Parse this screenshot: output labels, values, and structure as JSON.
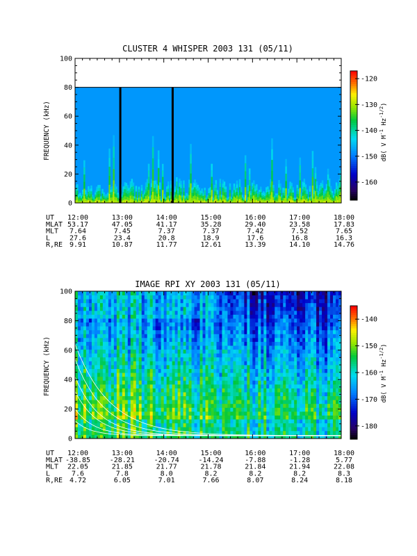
{
  "chart_data": [
    {
      "type": "heatmap",
      "title": "CLUSTER 4 WHISPER 2003 131 (05/11)",
      "ylabel": "FREQUENCY (kHz)",
      "ylim": [
        0,
        100
      ],
      "yticks": [
        "0",
        "20",
        "40",
        "60",
        "80",
        "100"
      ],
      "xlim_hours": [
        12,
        18
      ],
      "colorbar": {
        "label": "dB( V M",
        "label_sup1": "-1",
        "label_mid": " Hz",
        "label_sup2": "-1/2",
        "label_end": ")",
        "range": [
          -167,
          -117
        ],
        "ticks": [
          "-120",
          "-130",
          "-140",
          "-150",
          "-160"
        ],
        "tick_values": [
          -120,
          -130,
          -140,
          -150,
          -160
        ]
      },
      "fill_top_khz": 80,
      "background_level_db": -148,
      "gaps_hours": [
        13.02,
        14.2
      ],
      "ephemeris": {
        "labels": [
          "UT",
          "MLAT",
          "MLT",
          "L",
          "R,RE"
        ],
        "columns": [
          {
            "t": 12,
            "values": [
              "12:00",
              "53.17",
              "7.64",
              "27.6",
              "9.91"
            ]
          },
          {
            "t": 13,
            "values": [
              "13:00",
              "47.05",
              "7.45",
              "23.4",
              "10.87"
            ]
          },
          {
            "t": 14,
            "values": [
              "14:00",
              "41.17",
              "7.37",
              "20.8",
              "11.77"
            ]
          },
          {
            "t": 15,
            "values": [
              "15:00",
              "35.28",
              "7.37",
              "18.9",
              "12.61"
            ]
          },
          {
            "t": 16,
            "values": [
              "16:00",
              "29.40",
              "7.42",
              "17.6",
              "13.39"
            ]
          },
          {
            "t": 17,
            "values": [
              "17:00",
              "23.58",
              "7.52",
              "16.8",
              "14.10"
            ]
          },
          {
            "t": 18,
            "values": [
              "18:00",
              "17.83",
              "7.65",
              "16.3",
              "14.76"
            ]
          }
        ]
      }
    },
    {
      "type": "heatmap",
      "title": "IMAGE RPI XY 2003 131 (05/11)",
      "ylabel": "FREQUENCY (kHz)",
      "ylim": [
        0,
        100
      ],
      "yticks": [
        "0",
        "20",
        "40",
        "60",
        "80",
        "100"
      ],
      "xlim_hours": [
        12,
        18
      ],
      "colorbar": {
        "label": "dB( V M",
        "label_sup1": "-1",
        "label_mid": " Hz",
        "label_sup2": "-1/2",
        "label_end": ")",
        "range": [
          -185,
          -135
        ],
        "ticks": [
          "-140",
          "-150",
          "-160",
          "-170",
          "-180"
        ],
        "tick_values": [
          -140,
          -150,
          -160,
          -170,
          -180
        ]
      },
      "overlay_curves": "white plasma/gyro frequency traces",
      "ephemeris": {
        "labels": [
          "UT",
          "MLAT",
          "MLT",
          "L",
          "R,RE"
        ],
        "columns": [
          {
            "t": 12,
            "values": [
              "12:00",
              "-38.85",
              "22.05",
              "7.6",
              "4.72"
            ]
          },
          {
            "t": 13,
            "values": [
              "13:00",
              "-28.21",
              "21.85",
              "7.8",
              "6.05"
            ]
          },
          {
            "t": 14,
            "values": [
              "14:00",
              "-20.74",
              "21.77",
              "8.0",
              "7.01"
            ]
          },
          {
            "t": 15,
            "values": [
              "15:00",
              "-14.24",
              "21.78",
              "8.2",
              "7.66"
            ]
          },
          {
            "t": 16,
            "values": [
              "16:00",
              "-7.88",
              "21.84",
              "8.2",
              "8.07"
            ]
          },
          {
            "t": 17,
            "values": [
              "17:00",
              "-1.28",
              "21.94",
              "8.2",
              "8.24"
            ]
          },
          {
            "t": 18,
            "values": [
              "18:00",
              "5.77",
              "22.08",
              "8.3",
              "8.18"
            ]
          }
        ]
      }
    }
  ]
}
